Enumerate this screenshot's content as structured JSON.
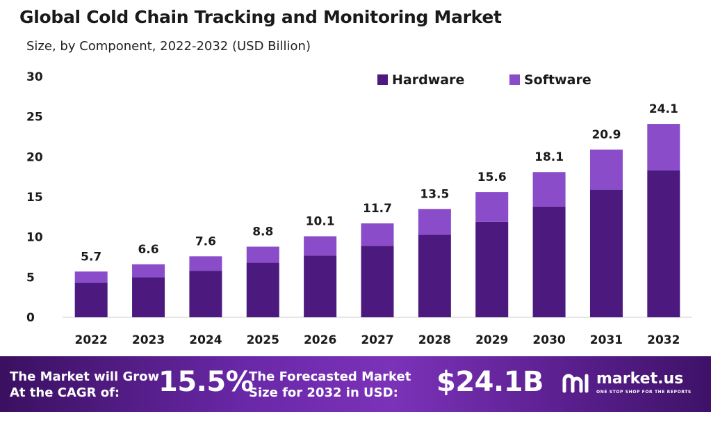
{
  "colors": {
    "hardware": "#4c1a7f",
    "software": "#8a4cc9",
    "banner_start": "#3a1060",
    "banner_mid": "#7b32b8"
  },
  "chart_data": {
    "type": "bar",
    "stacked": true,
    "title": "Global Cold Chain Tracking and Monitoring Market",
    "subtitle": "Size, by Component, 2022-2032 (USD Billion)",
    "categories": [
      "2022",
      "2023",
      "2024",
      "2025",
      "2026",
      "2027",
      "2028",
      "2029",
      "2030",
      "2031",
      "2032"
    ],
    "series": [
      {
        "name": "Hardware",
        "values": [
          4.3,
          5.0,
          5.8,
          6.8,
          7.7,
          8.9,
          10.3,
          11.9,
          13.8,
          15.9,
          18.3
        ]
      },
      {
        "name": "Software",
        "values": [
          1.4,
          1.6,
          1.8,
          2.0,
          2.4,
          2.8,
          3.2,
          3.7,
          4.3,
          5.0,
          5.8
        ]
      }
    ],
    "totals": [
      5.7,
      6.6,
      7.6,
      8.8,
      10.1,
      11.7,
      13.5,
      15.6,
      18.1,
      20.9,
      24.1
    ],
    "total_labels": [
      "5.7",
      "6.6",
      "7.6",
      "8.8",
      "10.1",
      "11.7",
      "13.5",
      "15.6",
      "18.1",
      "20.9",
      "24.1"
    ],
    "ylim": [
      0,
      30
    ],
    "yticks": [
      "0",
      "5",
      "10",
      "15",
      "20",
      "25",
      "30"
    ],
    "legend_position": "top-right",
    "grid": false
  },
  "banner": {
    "cagr_label_line1": "The Market will Grow",
    "cagr_label_line2": "At the CAGR of:",
    "cagr_value": "15.5%",
    "forecast_label_line1": "The Forecasted Market",
    "forecast_label_line2": "Size for 2032 in USD:",
    "forecast_value": "$24.1B",
    "logo_name": "market.us",
    "logo_tagline": "ONE STOP SHOP FOR THE REPORTS"
  }
}
